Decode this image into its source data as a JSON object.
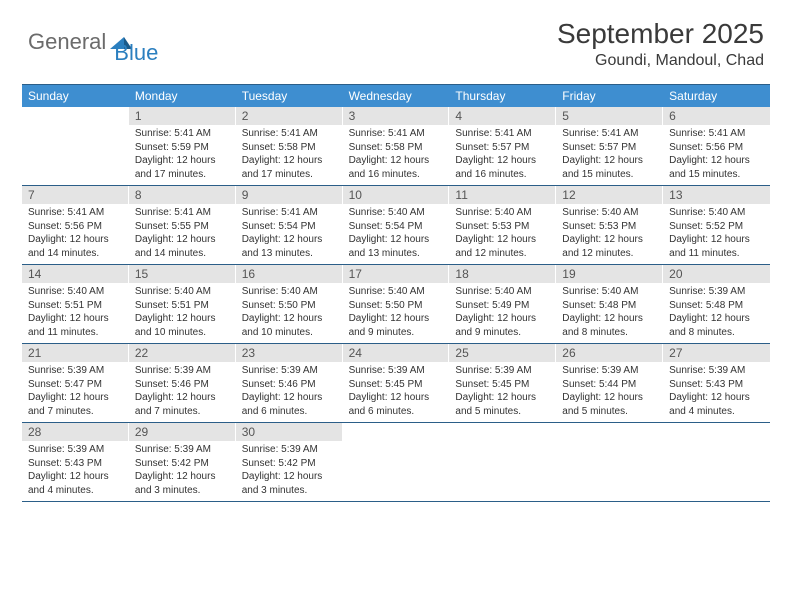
{
  "logo": {
    "text1": "General",
    "text2": "Blue"
  },
  "title": "September 2025",
  "location": "Goundi, Mandoul, Chad",
  "colors": {
    "header_bg": "#3e8ed0",
    "header_text": "#ffffff",
    "date_bg": "#e4e4e4",
    "row_border": "#2b5e88",
    "body_text": "#333333"
  },
  "day_names": [
    "Sunday",
    "Monday",
    "Tuesday",
    "Wednesday",
    "Thursday",
    "Friday",
    "Saturday"
  ],
  "first_weekday_offset": 1,
  "days": [
    {
      "n": 1,
      "sunrise": "5:41 AM",
      "sunset": "5:59 PM",
      "daylight": "12 hours and 17 minutes."
    },
    {
      "n": 2,
      "sunrise": "5:41 AM",
      "sunset": "5:58 PM",
      "daylight": "12 hours and 17 minutes."
    },
    {
      "n": 3,
      "sunrise": "5:41 AM",
      "sunset": "5:58 PM",
      "daylight": "12 hours and 16 minutes."
    },
    {
      "n": 4,
      "sunrise": "5:41 AM",
      "sunset": "5:57 PM",
      "daylight": "12 hours and 16 minutes."
    },
    {
      "n": 5,
      "sunrise": "5:41 AM",
      "sunset": "5:57 PM",
      "daylight": "12 hours and 15 minutes."
    },
    {
      "n": 6,
      "sunrise": "5:41 AM",
      "sunset": "5:56 PM",
      "daylight": "12 hours and 15 minutes."
    },
    {
      "n": 7,
      "sunrise": "5:41 AM",
      "sunset": "5:56 PM",
      "daylight": "12 hours and 14 minutes."
    },
    {
      "n": 8,
      "sunrise": "5:41 AM",
      "sunset": "5:55 PM",
      "daylight": "12 hours and 14 minutes."
    },
    {
      "n": 9,
      "sunrise": "5:41 AM",
      "sunset": "5:54 PM",
      "daylight": "12 hours and 13 minutes."
    },
    {
      "n": 10,
      "sunrise": "5:40 AM",
      "sunset": "5:54 PM",
      "daylight": "12 hours and 13 minutes."
    },
    {
      "n": 11,
      "sunrise": "5:40 AM",
      "sunset": "5:53 PM",
      "daylight": "12 hours and 12 minutes."
    },
    {
      "n": 12,
      "sunrise": "5:40 AM",
      "sunset": "5:53 PM",
      "daylight": "12 hours and 12 minutes."
    },
    {
      "n": 13,
      "sunrise": "5:40 AM",
      "sunset": "5:52 PM",
      "daylight": "12 hours and 11 minutes."
    },
    {
      "n": 14,
      "sunrise": "5:40 AM",
      "sunset": "5:51 PM",
      "daylight": "12 hours and 11 minutes."
    },
    {
      "n": 15,
      "sunrise": "5:40 AM",
      "sunset": "5:51 PM",
      "daylight": "12 hours and 10 minutes."
    },
    {
      "n": 16,
      "sunrise": "5:40 AM",
      "sunset": "5:50 PM",
      "daylight": "12 hours and 10 minutes."
    },
    {
      "n": 17,
      "sunrise": "5:40 AM",
      "sunset": "5:50 PM",
      "daylight": "12 hours and 9 minutes."
    },
    {
      "n": 18,
      "sunrise": "5:40 AM",
      "sunset": "5:49 PM",
      "daylight": "12 hours and 9 minutes."
    },
    {
      "n": 19,
      "sunrise": "5:40 AM",
      "sunset": "5:48 PM",
      "daylight": "12 hours and 8 minutes."
    },
    {
      "n": 20,
      "sunrise": "5:39 AM",
      "sunset": "5:48 PM",
      "daylight": "12 hours and 8 minutes."
    },
    {
      "n": 21,
      "sunrise": "5:39 AM",
      "sunset": "5:47 PM",
      "daylight": "12 hours and 7 minutes."
    },
    {
      "n": 22,
      "sunrise": "5:39 AM",
      "sunset": "5:46 PM",
      "daylight": "12 hours and 7 minutes."
    },
    {
      "n": 23,
      "sunrise": "5:39 AM",
      "sunset": "5:46 PM",
      "daylight": "12 hours and 6 minutes."
    },
    {
      "n": 24,
      "sunrise": "5:39 AM",
      "sunset": "5:45 PM",
      "daylight": "12 hours and 6 minutes."
    },
    {
      "n": 25,
      "sunrise": "5:39 AM",
      "sunset": "5:45 PM",
      "daylight": "12 hours and 5 minutes."
    },
    {
      "n": 26,
      "sunrise": "5:39 AM",
      "sunset": "5:44 PM",
      "daylight": "12 hours and 5 minutes."
    },
    {
      "n": 27,
      "sunrise": "5:39 AM",
      "sunset": "5:43 PM",
      "daylight": "12 hours and 4 minutes."
    },
    {
      "n": 28,
      "sunrise": "5:39 AM",
      "sunset": "5:43 PM",
      "daylight": "12 hours and 4 minutes."
    },
    {
      "n": 29,
      "sunrise": "5:39 AM",
      "sunset": "5:42 PM",
      "daylight": "12 hours and 3 minutes."
    },
    {
      "n": 30,
      "sunrise": "5:39 AM",
      "sunset": "5:42 PM",
      "daylight": "12 hours and 3 minutes."
    }
  ],
  "labels": {
    "sunrise": "Sunrise:",
    "sunset": "Sunset:",
    "daylight": "Daylight:"
  }
}
